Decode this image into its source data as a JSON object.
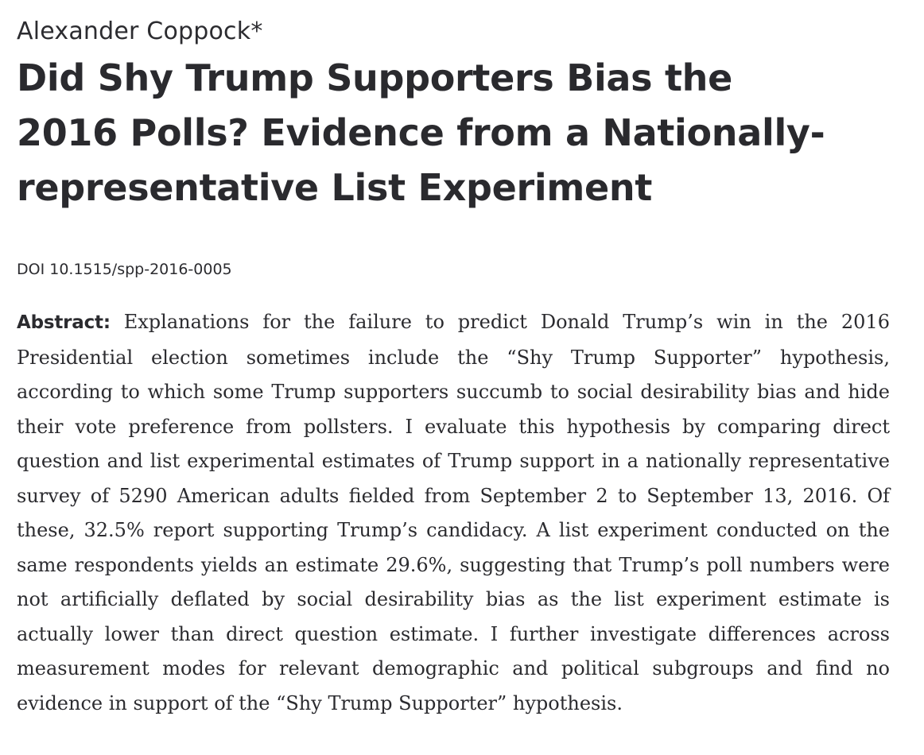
{
  "paper": {
    "author": "Alexander Coppock*",
    "title_lines": [
      "Did Shy Trump Supporters Bias the",
      "2016 Polls? Evidence from a Nationally-",
      "representative List Experiment"
    ],
    "doi": "DOI 10.1515/spp-2016-0005",
    "abstract_label": "Abstract:",
    "abstract_text": "Explanations for the failure to predict Donald Trump’s win in the 2016 Presidential election sometimes include the “Shy Trump Supporter” hypothesis, according to which some Trump supporters succumb to social desirability bias and hide their vote preference from pollsters. I evaluate this hypothesis by com­paring direct question and list experimental estimates of Trump support in a nationally representative survey of 5290 American adults fielded from September 2 to September 13, 2016. Of these, 32.5% report supporting Trump’s candidacy. A list experiment conducted on the same respondents yields an estimate 29.6%, suggesting that Trump’s poll numbers were not artificially deflated by social desir­ability bias as the list experiment estimate is actually lower than direct question estimate. I further investigate differences across measurement modes for relevant demographic and political subgroups and find no evidence in support of the “Shy Trump Supporter” hypothesis."
  }
}
